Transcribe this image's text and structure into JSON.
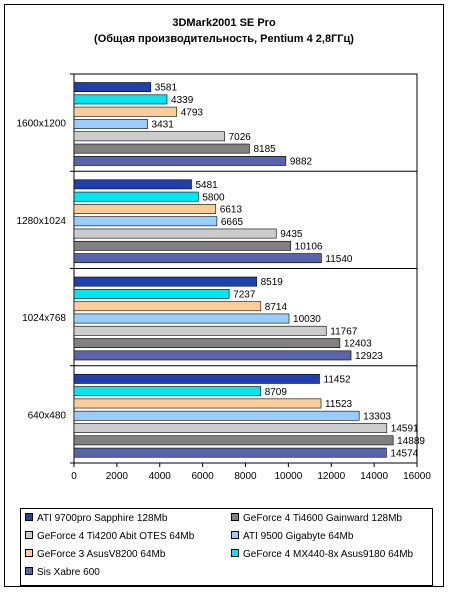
{
  "chart_data": {
    "type": "bar",
    "orientation": "horizontal",
    "title": "3DMark2001 SE  Pro",
    "subtitle": "(Общая производительность, Pentium 4 2,8ГГц)",
    "categories": [
      "1600x1200",
      "1280x1024",
      "1024x768",
      "640x480"
    ],
    "xlim": [
      0,
      16000
    ],
    "xticks": [
      0,
      2000,
      4000,
      6000,
      8000,
      10000,
      12000,
      14000,
      16000
    ],
    "grid": false,
    "legend_position": "bottom",
    "series": [
      {
        "name": "ATI 9700pro Sapphire 128Mb",
        "color": "#1f3fb0",
        "values": [
          3581,
          5481,
          8519,
          11452
        ]
      },
      {
        "name": "GeForce 4 MX440-8x Asus9180 64Mb",
        "color": "#00e5f0",
        "values": [
          4339,
          5800,
          7237,
          8709
        ]
      },
      {
        "name": "GeForce 3 AsusV8200 64Mb",
        "color": "#ffcc99",
        "values": [
          4793,
          6613,
          8714,
          11523
        ]
      },
      {
        "name": "ATI 9500 Gigabyte 64Mb",
        "color": "#99ccff",
        "values": [
          3431,
          6665,
          10030,
          13303
        ]
      },
      {
        "name": "GeForce 4 Ti4200 Abit OTES 64Mb",
        "color": "#cccccc",
        "values": [
          7026,
          9435,
          11767,
          14591
        ]
      },
      {
        "name": "GeForce 4 Ti4600 Gainward 128Mb",
        "color": "#808080",
        "values": [
          8185,
          10106,
          12403,
          14889
        ]
      },
      {
        "name": "Sis Xabre 600",
        "color": "#5a64a8",
        "values": [
          9882,
          11540,
          12923,
          14574
        ]
      }
    ],
    "legend_order": [
      0,
      5,
      4,
      3,
      2,
      1,
      6
    ]
  }
}
